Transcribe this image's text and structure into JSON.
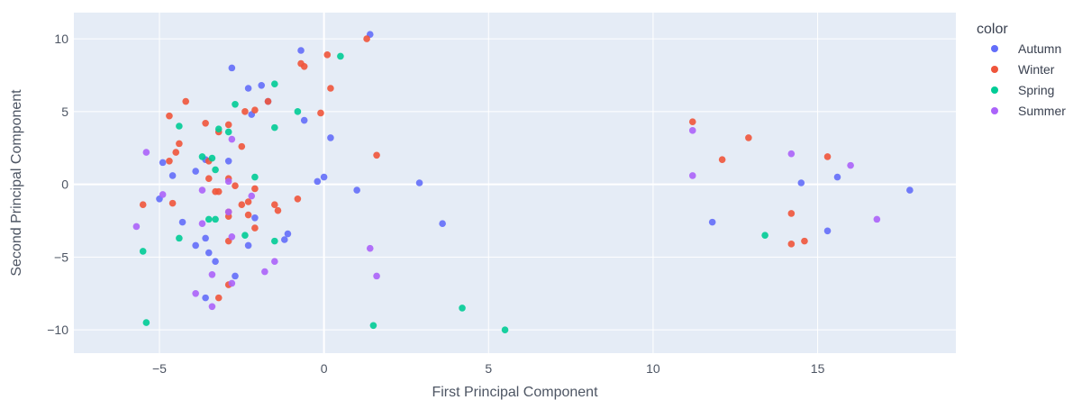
{
  "chart_data": {
    "type": "scatter",
    "xlabel": "First Principal Component",
    "ylabel": "Second Principal Component",
    "xlim": [
      -7.6,
      19.2
    ],
    "ylim": [
      -11.6,
      11.8
    ],
    "xticks": [
      -5,
      0,
      5,
      10,
      15
    ],
    "yticks": [
      -10,
      -5,
      0,
      5,
      10
    ],
    "grid": true,
    "legend": {
      "title": "color",
      "position": "right"
    },
    "series": [
      {
        "name": "Autumn",
        "color": "#636efa",
        "points": [
          [
            -2.8,
            8.0
          ],
          [
            -0.7,
            9.2
          ],
          [
            1.4,
            10.3
          ],
          [
            -2.3,
            6.6
          ],
          [
            -1.9,
            6.8
          ],
          [
            -1.7,
            5.7
          ],
          [
            -2.2,
            4.8
          ],
          [
            -0.6,
            4.4
          ],
          [
            0.2,
            3.2
          ],
          [
            -2.9,
            1.6
          ],
          [
            -3.6,
            1.7
          ],
          [
            -4.9,
            1.5
          ],
          [
            -3.9,
            0.9
          ],
          [
            -4.6,
            0.6
          ],
          [
            -5.0,
            -1.0
          ],
          [
            -0.2,
            0.2
          ],
          [
            0.0,
            0.5
          ],
          [
            1.0,
            -0.4
          ],
          [
            2.9,
            0.1
          ],
          [
            -2.1,
            -2.3
          ],
          [
            -4.3,
            -2.6
          ],
          [
            -3.6,
            -3.7
          ],
          [
            -3.9,
            -4.2
          ],
          [
            -3.5,
            -4.7
          ],
          [
            -2.3,
            -4.2
          ],
          [
            -1.1,
            -3.4
          ],
          [
            -1.2,
            -3.8
          ],
          [
            -3.3,
            -5.3
          ],
          [
            -2.7,
            -6.3
          ],
          [
            -3.6,
            -7.8
          ],
          [
            3.6,
            -2.7
          ],
          [
            11.8,
            -2.6
          ],
          [
            14.5,
            0.1
          ],
          [
            15.6,
            0.5
          ],
          [
            17.8,
            -0.4
          ],
          [
            15.3,
            -3.2
          ]
        ]
      },
      {
        "name": "Winter",
        "color": "#ef553b",
        "points": [
          [
            1.3,
            10.0
          ],
          [
            0.1,
            8.9
          ],
          [
            -0.7,
            8.3
          ],
          [
            -0.6,
            8.1
          ],
          [
            0.2,
            6.6
          ],
          [
            -4.2,
            5.7
          ],
          [
            -1.7,
            5.7
          ],
          [
            -4.7,
            4.7
          ],
          [
            -3.6,
            4.2
          ],
          [
            -2.9,
            4.1
          ],
          [
            -2.1,
            5.1
          ],
          [
            -2.4,
            5.0
          ],
          [
            -0.1,
            4.9
          ],
          [
            -3.2,
            3.6
          ],
          [
            -4.4,
            2.8
          ],
          [
            -4.5,
            2.2
          ],
          [
            -2.5,
            2.6
          ],
          [
            -3.5,
            1.6
          ],
          [
            -4.7,
            1.6
          ],
          [
            -3.5,
            0.4
          ],
          [
            -2.9,
            0.4
          ],
          [
            -2.7,
            -0.1
          ],
          [
            -3.3,
            -0.5
          ],
          [
            -3.2,
            -0.5
          ],
          [
            -2.1,
            -0.3
          ],
          [
            -2.3,
            -1.2
          ],
          [
            -2.5,
            -1.4
          ],
          [
            -1.5,
            -1.4
          ],
          [
            -1.4,
            -1.8
          ],
          [
            -0.8,
            -1.0
          ],
          [
            -4.6,
            -1.3
          ],
          [
            -5.5,
            -1.4
          ],
          [
            -2.9,
            -1.9
          ],
          [
            -2.9,
            -2.2
          ],
          [
            -2.3,
            -2.1
          ],
          [
            -2.1,
            -3.0
          ],
          [
            -2.9,
            -3.9
          ],
          [
            -2.9,
            -6.9
          ],
          [
            -3.2,
            -7.8
          ],
          [
            1.6,
            2.0
          ],
          [
            11.2,
            4.3
          ],
          [
            12.1,
            1.7
          ],
          [
            12.9,
            3.2
          ],
          [
            15.3,
            1.9
          ],
          [
            14.2,
            -2.0
          ],
          [
            14.2,
            -4.1
          ],
          [
            14.6,
            -3.9
          ]
        ]
      },
      {
        "name": "Spring",
        "color": "#00cc96",
        "points": [
          [
            0.5,
            8.8
          ],
          [
            -1.5,
            6.9
          ],
          [
            -2.7,
            5.5
          ],
          [
            -0.8,
            5.0
          ],
          [
            -4.4,
            4.0
          ],
          [
            -1.5,
            3.9
          ],
          [
            -3.2,
            3.8
          ],
          [
            -2.9,
            3.6
          ],
          [
            -3.7,
            1.9
          ],
          [
            -3.4,
            1.8
          ],
          [
            -3.3,
            1.0
          ],
          [
            -2.1,
            0.5
          ],
          [
            -3.3,
            -2.4
          ],
          [
            -3.5,
            -2.4
          ],
          [
            -2.4,
            -3.5
          ],
          [
            -4.4,
            -3.7
          ],
          [
            -1.5,
            -3.9
          ],
          [
            -5.5,
            -4.6
          ],
          [
            -5.4,
            -9.5
          ],
          [
            1.5,
            -9.7
          ],
          [
            4.2,
            -8.5
          ],
          [
            5.5,
            -10.0
          ],
          [
            13.4,
            -3.5
          ]
        ]
      },
      {
        "name": "Summer",
        "color": "#ab63fa",
        "points": [
          [
            -5.4,
            2.2
          ],
          [
            -2.8,
            3.1
          ],
          [
            -4.9,
            -0.7
          ],
          [
            -5.7,
            -2.9
          ],
          [
            -3.7,
            -0.4
          ],
          [
            -2.9,
            0.2
          ],
          [
            -2.2,
            -0.8
          ],
          [
            -3.7,
            -2.7
          ],
          [
            -2.9,
            -1.9
          ],
          [
            -2.8,
            -3.6
          ],
          [
            -3.4,
            -6.2
          ],
          [
            -2.8,
            -6.8
          ],
          [
            -3.9,
            -7.5
          ],
          [
            -3.4,
            -8.4
          ],
          [
            -1.8,
            -6.0
          ],
          [
            -1.5,
            -5.3
          ],
          [
            1.4,
            -4.4
          ],
          [
            1.6,
            -6.3
          ],
          [
            11.2,
            3.7
          ],
          [
            11.2,
            0.6
          ],
          [
            14.2,
            2.1
          ],
          [
            16.0,
            1.3
          ],
          [
            16.8,
            -2.4
          ]
        ]
      }
    ]
  }
}
